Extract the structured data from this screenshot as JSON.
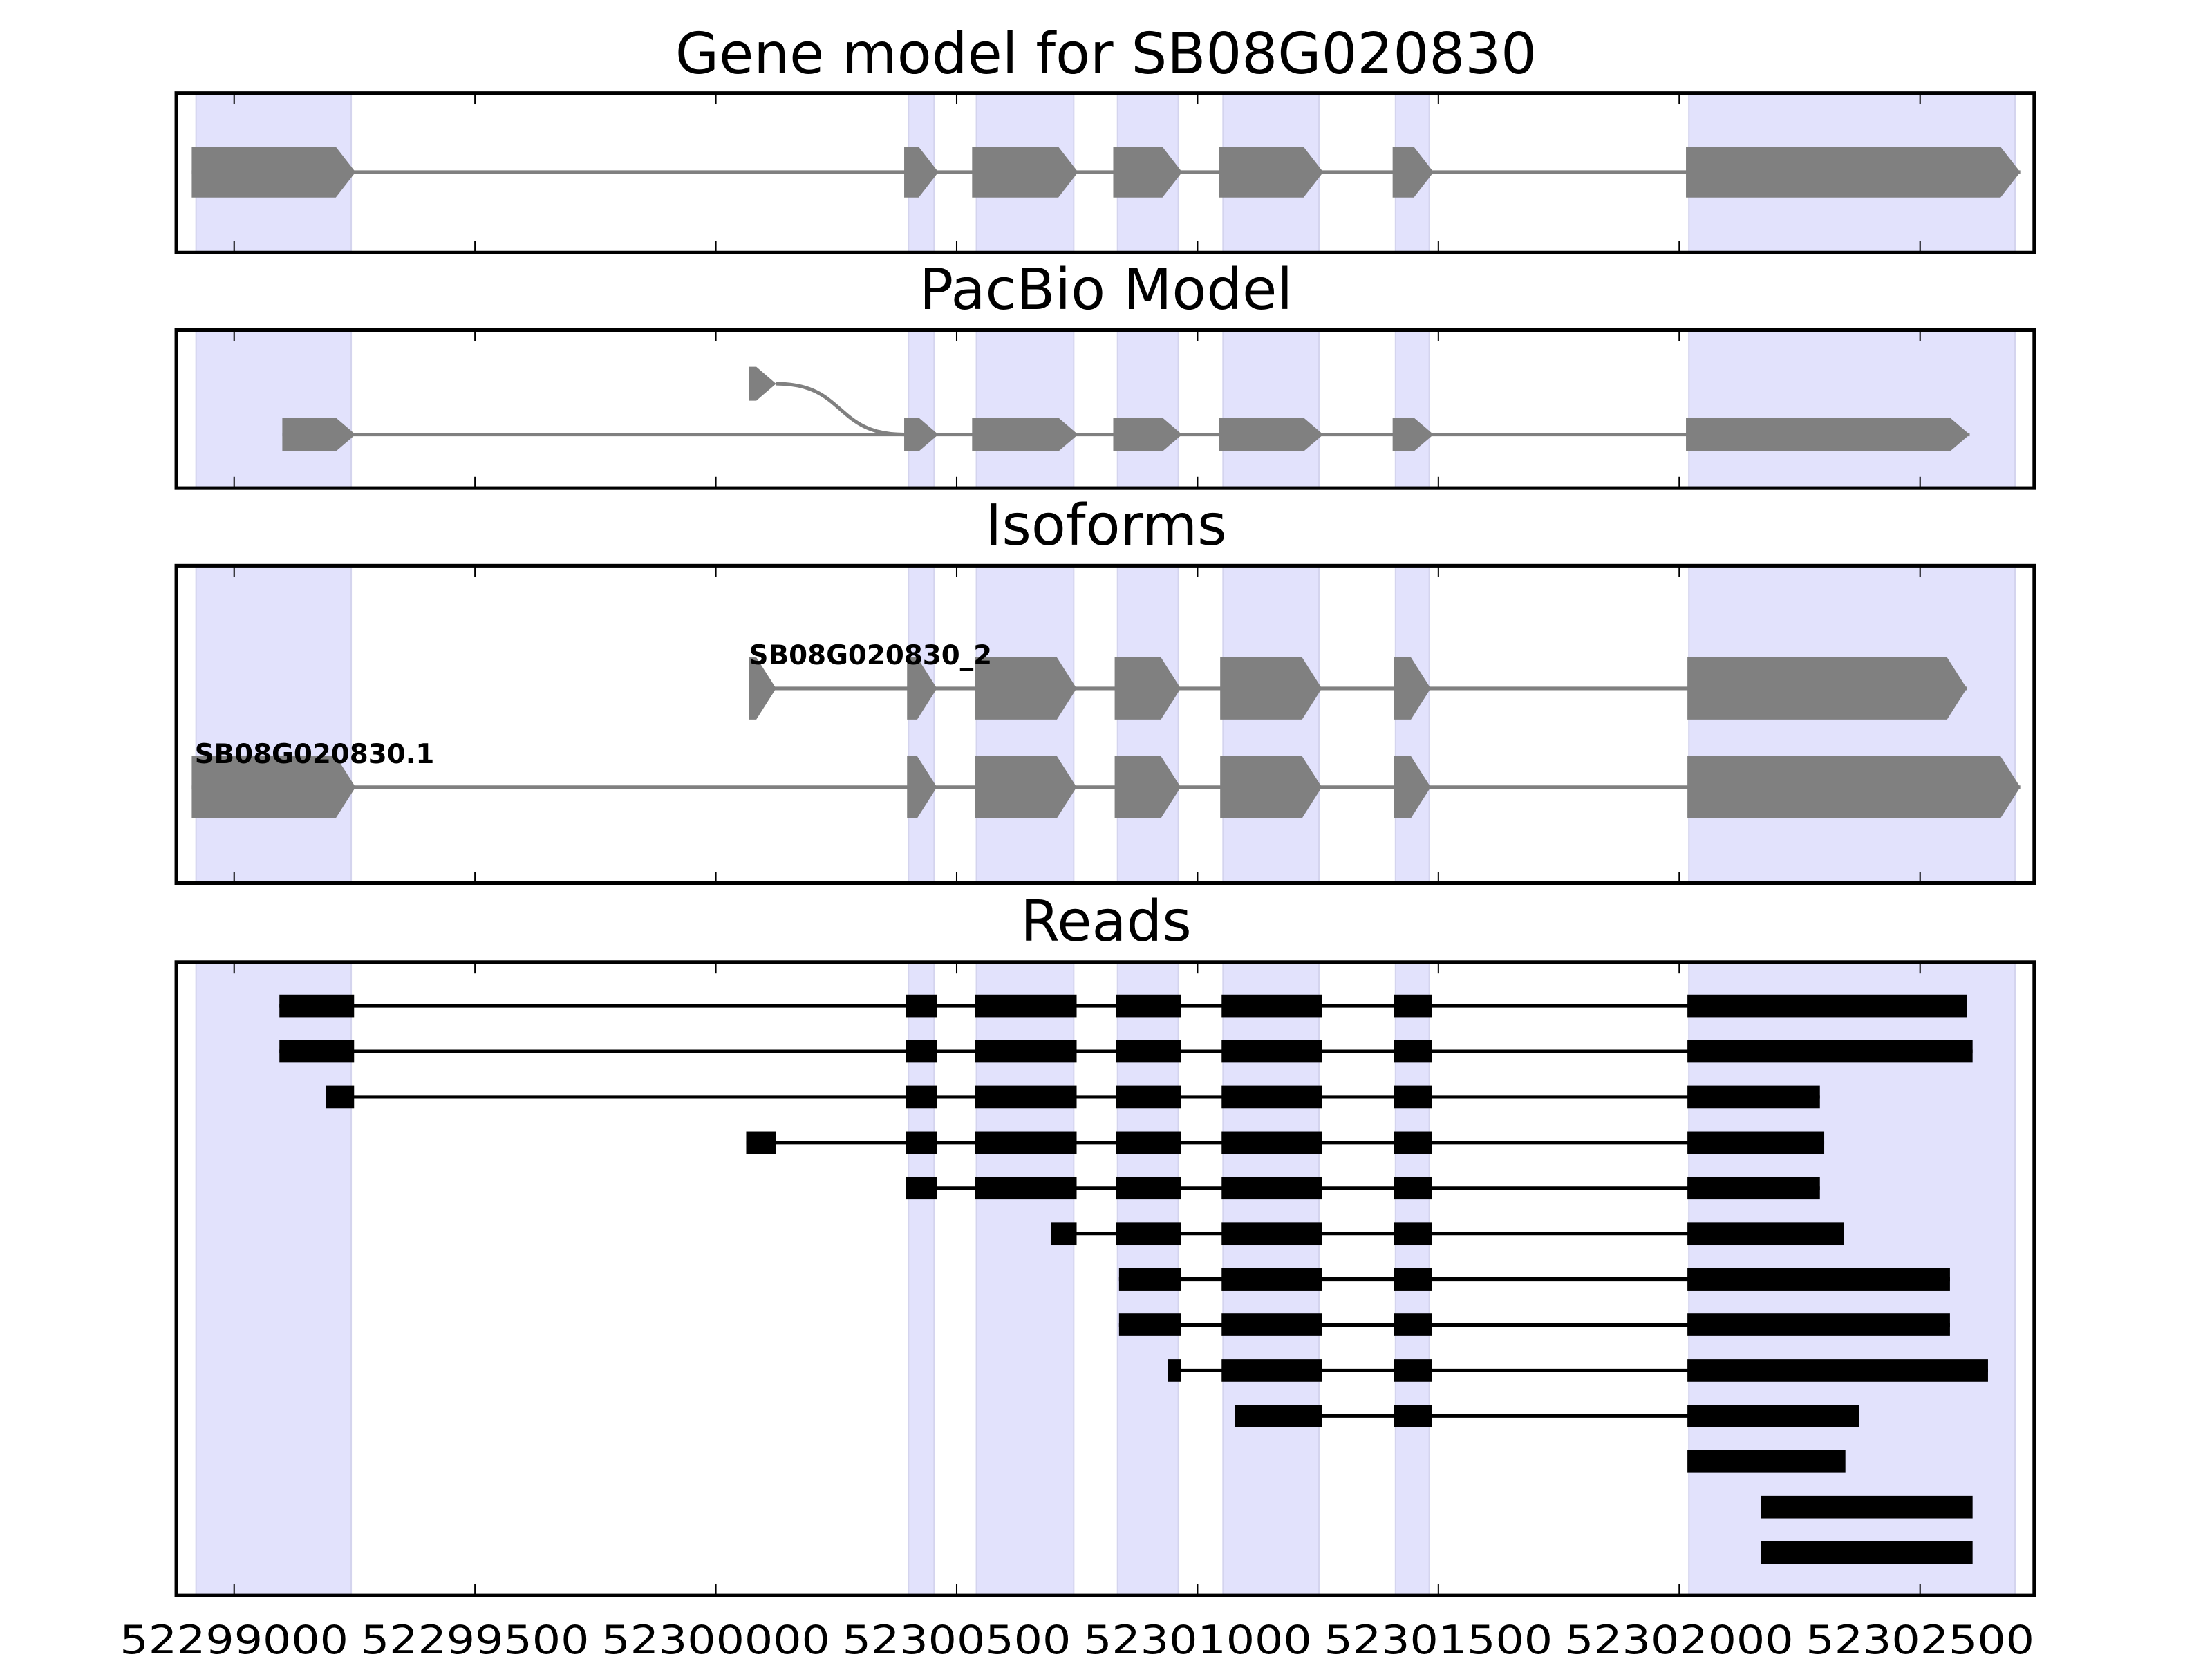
{
  "chart_data": {
    "type": "gene-track",
    "xlim": [
      52298880,
      52302737
    ],
    "x_ticks": [
      52299000,
      52299500,
      52300000,
      52300500,
      52301000,
      52301500,
      52302000,
      52302500
    ],
    "x_tick_labels": [
      "52299000",
      "52299500",
      "52300000",
      "52300500",
      "52301000",
      "52301500",
      "52302000",
      "52302500"
    ],
    "colors": {
      "shade": "#e2e2fc",
      "model": "#808080",
      "reads": "#000000"
    },
    "shaded_exons": [
      [
        52298921,
        52299243
      ],
      [
        52300400,
        52300453
      ],
      [
        52300541,
        52300743
      ],
      [
        52300834,
        52300960
      ],
      [
        52301053,
        52301252
      ],
      [
        52301411,
        52301481
      ],
      [
        52302020,
        52302697
      ]
    ],
    "panels": [
      {
        "title": "Gene model for SB08G020830",
        "kind": "model",
        "transcripts": [
          {
            "label": "",
            "exons": [
              [
                52298912,
                52299252
              ],
              [
                52300391,
                52300462
              ],
              [
                52300532,
                52300752
              ],
              [
                52300825,
                52300968
              ],
              [
                52301044,
                52301261
              ],
              [
                52301405,
                52301490
              ],
              [
                52302014,
                52302708
              ]
            ]
          }
        ]
      },
      {
        "title": "PacBio Model",
        "kind": "model",
        "transcripts": [
          {
            "label": "",
            "exons": [
              [
                52299100,
                52299252
              ],
              [
                52300391,
                52300462
              ],
              [
                52300532,
                52300752
              ],
              [
                52300825,
                52300968
              ],
              [
                52301044,
                52301261
              ],
              [
                52301405,
                52301490
              ],
              [
                52302014,
                52302603
              ]
            ]
          },
          {
            "label": "",
            "alt_first_exon": [
              52300069,
              52300125
            ],
            "joins_at": 52300391
          }
        ]
      },
      {
        "title": "Isoforms",
        "kind": "model",
        "transcripts": [
          {
            "label": "SB08G020830_2",
            "exons": [
              [
                52300069,
                52300125
              ],
              [
                52300397,
                52300459
              ],
              [
                52300538,
                52300749
              ],
              [
                52300828,
                52300965
              ],
              [
                52301047,
                52301258
              ],
              [
                52301408,
                52301484
              ],
              [
                52302017,
                52302597
              ]
            ]
          },
          {
            "label": "SB08G020830.1",
            "exons": [
              [
                52298912,
                52299252
              ],
              [
                52300397,
                52300459
              ],
              [
                52300538,
                52300749
              ],
              [
                52300828,
                52300965
              ],
              [
                52301047,
                52301258
              ],
              [
                52301408,
                52301484
              ],
              [
                52302017,
                52302708
              ]
            ]
          }
        ]
      },
      {
        "title": "Reads",
        "kind": "reads",
        "reads": [
          [
            [
              52299094,
              52299249
            ],
            [
              52300394,
              52300459
            ],
            [
              52300538,
              52300749
            ],
            [
              52300831,
              52300965
            ],
            [
              52301050,
              52301258
            ],
            [
              52301408,
              52301487
            ],
            [
              52302017,
              52302597
            ]
          ],
          [
            [
              52299094,
              52299249
            ],
            [
              52300394,
              52300459
            ],
            [
              52300538,
              52300749
            ],
            [
              52300831,
              52300965
            ],
            [
              52301050,
              52301258
            ],
            [
              52301408,
              52301487
            ],
            [
              52302017,
              52302609
            ]
          ],
          [
            [
              52299190,
              52299249
            ],
            [
              52300394,
              52300459
            ],
            [
              52300538,
              52300749
            ],
            [
              52300831,
              52300965
            ],
            [
              52301050,
              52301258
            ],
            [
              52301408,
              52301487
            ],
            [
              52302017,
              52302292
            ]
          ],
          [
            [
              52300063,
              52300125
            ],
            [
              52300394,
              52300459
            ],
            [
              52300538,
              52300749
            ],
            [
              52300831,
              52300965
            ],
            [
              52301050,
              52301258
            ],
            [
              52301408,
              52301487
            ],
            [
              52302017,
              52302301
            ]
          ],
          [
            [
              52300394,
              52300459
            ],
            [
              52300538,
              52300749
            ],
            [
              52300831,
              52300965
            ],
            [
              52301050,
              52301258
            ],
            [
              52301408,
              52301487
            ],
            [
              52302017,
              52302292
            ]
          ],
          [
            [
              52300696,
              52300749
            ],
            [
              52300831,
              52300965
            ],
            [
              52301050,
              52301258
            ],
            [
              52301408,
              52301487
            ],
            [
              52302017,
              52302342
            ]
          ],
          [
            [
              52300837,
              52300965
            ],
            [
              52301050,
              52301258
            ],
            [
              52301408,
              52301487
            ],
            [
              52302017,
              52302562
            ]
          ],
          [
            [
              52300837,
              52300965
            ],
            [
              52301050,
              52301258
            ],
            [
              52301408,
              52301487
            ],
            [
              52302017,
              52302562
            ]
          ],
          [
            [
              52300939,
              52300965
            ],
            [
              52301050,
              52301258
            ],
            [
              52301408,
              52301487
            ],
            [
              52302017,
              52302641
            ]
          ],
          [
            [
              52301077,
              52301258
            ],
            [
              52301408,
              52301487
            ],
            [
              52302017,
              52302374
            ]
          ],
          [
            [
              52302017,
              52302345
            ]
          ],
          [
            [
              52302169,
              52302609
            ]
          ],
          [
            [
              52302169,
              52302609
            ]
          ]
        ]
      }
    ]
  }
}
